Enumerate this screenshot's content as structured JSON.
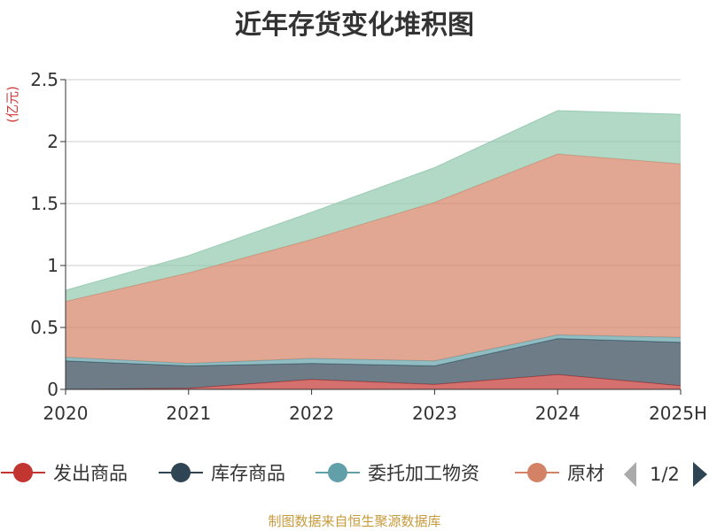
{
  "chart_data": {
    "type": "area",
    "stacked": true,
    "title": "近年存货变化堆积图",
    "unit": "(亿元)",
    "categories": [
      "2020",
      "2021",
      "2022",
      "2023",
      "2024",
      "2025H"
    ],
    "ylim": [
      0,
      2.5
    ],
    "yticks": [
      "0",
      "0.5",
      "1",
      "1.5",
      "2",
      "2.5"
    ],
    "grid": true,
    "series": [
      {
        "name": "发出商品",
        "color": "#c23531",
        "values": [
          0.0,
          0.01,
          0.08,
          0.04,
          0.12,
          0.03
        ]
      },
      {
        "name": "库存商品",
        "color": "#2f4554",
        "values": [
          0.23,
          0.18,
          0.13,
          0.15,
          0.29,
          0.35
        ]
      },
      {
        "name": "委托加工物资",
        "color": "#61a0a8",
        "values": [
          0.03,
          0.02,
          0.04,
          0.04,
          0.03,
          0.04
        ]
      },
      {
        "name": "原材料",
        "color": "#d48265",
        "values": [
          0.45,
          0.73,
          0.96,
          1.28,
          1.46,
          1.4
        ]
      },
      {
        "name": "",
        "color": "#91c7ae",
        "values": [
          0.09,
          0.14,
          0.22,
          0.28,
          0.35,
          0.4
        ]
      }
    ],
    "legend": {
      "position": "bottom",
      "visible_labels": [
        "发出商品",
        "库存商品",
        "委托加工物资",
        "原材"
      ],
      "page": "1/2"
    }
  },
  "source": "制图数据来自恒生聚源数据库"
}
